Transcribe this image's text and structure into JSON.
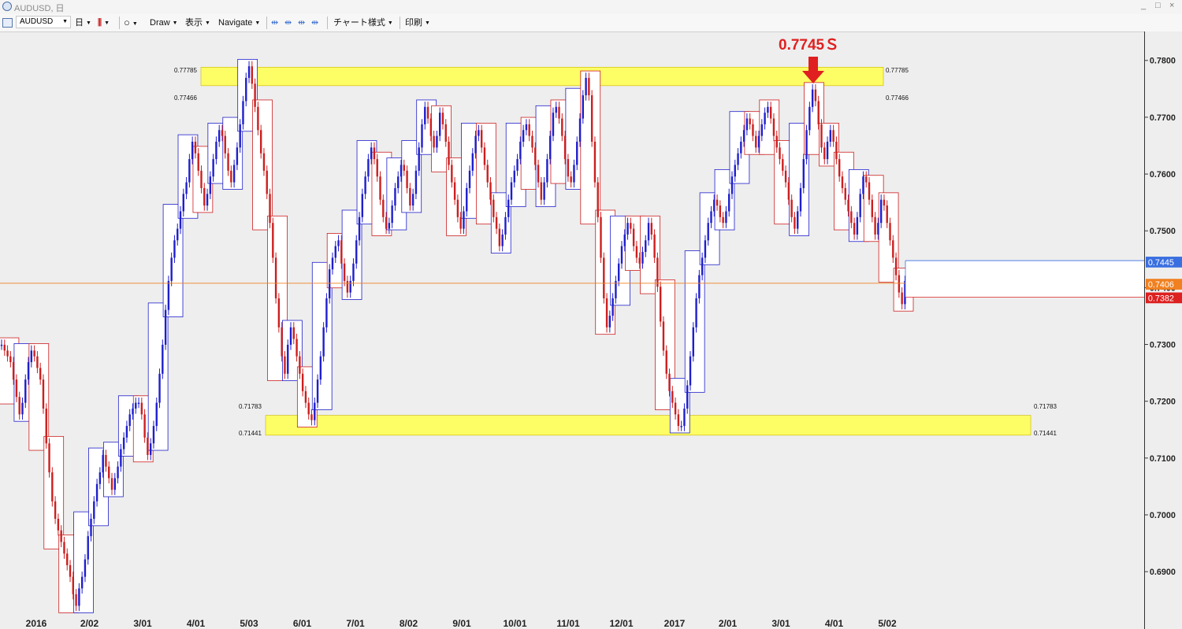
{
  "window": {
    "title": "AUDUSD, 日",
    "controls": [
      "_",
      "□",
      "×"
    ]
  },
  "toolbar": {
    "symbol": "AUDUSD",
    "timeframe": "日",
    "draw": "Draw",
    "display": "表示",
    "navigate": "Navigate",
    "chart_style": "チャート様式",
    "print": "印刷"
  },
  "colors": {
    "bull": "#1f1fcc",
    "bear": "#cc1f1f",
    "zone": "#ffff4d",
    "arrow": "#e02020",
    "current": "#f08020"
  },
  "annotations": {
    "peak_label": "0.7745Ｓ",
    "top_zone_upper": "0.77785",
    "top_zone_lower": "0.77466",
    "bottom_zone_upper": "0.71783",
    "bottom_zone_lower": "0.71441"
  },
  "price_tags": [
    {
      "text": "0.7445",
      "price": 0.7445,
      "color": "#3a6fe0"
    },
    {
      "text": "0.7406",
      "price": 0.7406,
      "color": "#f08020"
    },
    {
      "text": "0.7382",
      "price": 0.7382,
      "color": "#dd2020"
    }
  ],
  "chart_data": {
    "type": "line",
    "title": "",
    "xlabel": "",
    "ylabel": "",
    "ylim": [
      0.681,
      0.784
    ],
    "yticks": [
      "0.7800",
      "0.7700",
      "0.7600",
      "0.7500",
      "0.7400",
      "0.7300",
      "0.7200",
      "0.7100",
      "0.7000",
      "0.6900"
    ],
    "xticks": [
      "2016",
      "2/02",
      "3/01",
      "4/01",
      "5/03",
      "6/01",
      "7/01",
      "8/02",
      "9/01",
      "10/01",
      "11/01",
      "12/01",
      "2017",
      "2/01",
      "3/01",
      "4/01",
      "5/02"
    ],
    "series": [
      {
        "values": [
          0.73,
          0.729,
          0.728,
          0.727,
          0.724,
          0.721,
          0.718,
          0.72,
          0.724,
          0.727,
          0.729,
          0.728,
          0.726,
          0.724,
          0.719,
          0.713,
          0.708,
          0.703,
          0.7,
          0.698,
          0.696,
          0.694,
          0.692,
          0.69,
          0.687,
          0.685,
          0.688,
          0.69,
          0.693,
          0.697,
          0.7,
          0.703,
          0.706,
          0.708,
          0.711,
          0.709,
          0.707,
          0.705,
          0.707,
          0.709,
          0.712,
          0.714,
          0.716,
          0.718,
          0.719,
          0.72,
          0.72,
          0.718,
          0.714,
          0.711,
          0.713,
          0.716,
          0.72,
          0.725,
          0.73,
          0.736,
          0.741,
          0.745,
          0.748,
          0.75,
          0.753,
          0.756,
          0.758,
          0.762,
          0.765,
          0.763,
          0.76,
          0.757,
          0.754,
          0.756,
          0.759,
          0.762,
          0.765,
          0.767,
          0.766,
          0.763,
          0.76,
          0.758,
          0.761,
          0.764,
          0.768,
          0.772,
          0.776,
          0.778,
          0.775,
          0.771,
          0.767,
          0.763,
          0.76,
          0.756,
          0.751,
          0.745,
          0.738,
          0.733,
          0.728,
          0.725,
          0.73,
          0.733,
          0.731,
          0.728,
          0.725,
          0.722,
          0.72,
          0.718,
          0.717,
          0.72,
          0.724,
          0.728,
          0.733,
          0.738,
          0.743,
          0.745,
          0.747,
          0.748,
          0.744,
          0.741,
          0.739,
          0.741,
          0.744,
          0.748,
          0.752,
          0.756,
          0.759,
          0.762,
          0.764,
          0.762,
          0.759,
          0.755,
          0.752,
          0.75,
          0.751,
          0.754,
          0.757,
          0.759,
          0.761,
          0.76,
          0.757,
          0.754,
          0.756,
          0.76,
          0.764,
          0.768,
          0.771,
          0.769,
          0.766,
          0.764,
          0.766,
          0.77,
          0.768,
          0.765,
          0.761,
          0.758,
          0.755,
          0.752,
          0.75,
          0.753,
          0.757,
          0.76,
          0.763,
          0.766,
          0.767,
          0.764,
          0.761,
          0.758,
          0.755,
          0.752,
          0.75,
          0.747,
          0.749,
          0.752,
          0.755,
          0.758,
          0.76,
          0.762,
          0.765,
          0.767,
          0.768,
          0.766,
          0.764,
          0.761,
          0.758,
          0.755,
          0.758,
          0.762,
          0.766,
          0.77,
          0.771,
          0.769,
          0.766,
          0.762,
          0.759,
          0.758,
          0.761,
          0.765,
          0.769,
          0.773,
          0.776,
          0.773,
          0.765,
          0.758,
          0.752,
          0.745,
          0.738,
          0.733,
          0.735,
          0.738,
          0.741,
          0.744,
          0.747,
          0.749,
          0.751,
          0.75,
          0.747,
          0.745,
          0.744,
          0.746,
          0.748,
          0.751,
          0.749,
          0.745,
          0.74,
          0.734,
          0.729,
          0.725,
          0.722,
          0.72,
          0.718,
          0.716,
          0.716,
          0.719,
          0.723,
          0.728,
          0.733,
          0.738,
          0.742,
          0.745,
          0.748,
          0.751,
          0.753,
          0.755,
          0.754,
          0.752,
          0.751,
          0.753,
          0.756,
          0.759,
          0.761,
          0.763,
          0.765,
          0.767,
          0.769,
          0.768,
          0.766,
          0.764,
          0.766,
          0.768,
          0.77,
          0.771,
          0.769,
          0.766,
          0.764,
          0.762,
          0.76,
          0.758,
          0.755,
          0.752,
          0.75,
          0.753,
          0.757,
          0.762,
          0.767,
          0.771,
          0.774,
          0.772,
          0.768,
          0.764,
          0.762,
          0.765,
          0.767,
          0.765,
          0.762,
          0.759,
          0.757,
          0.755,
          0.753,
          0.751,
          0.749,
          0.752,
          0.756,
          0.759,
          0.758,
          0.755,
          0.752,
          0.749,
          0.751,
          0.755,
          0.754,
          0.751,
          0.748,
          0.745,
          0.742,
          0.739,
          0.737,
          0.741,
          0.742,
          0.741
        ]
      }
    ],
    "zones": [
      {
        "upper": 0.77785,
        "lower": 0.77466
      },
      {
        "upper": 0.71783,
        "lower": 0.71441
      }
    ],
    "marker": {
      "label": "0.7745Ｓ",
      "price": 0.7745
    },
    "current_price": 0.7406,
    "grid": false,
    "legend": "none"
  }
}
